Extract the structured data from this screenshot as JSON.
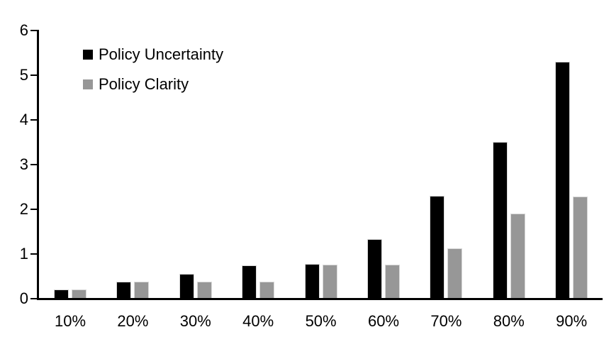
{
  "chart_data": {
    "type": "bar",
    "title": "",
    "xlabel": "",
    "ylabel": "",
    "categories": [
      "10%",
      "20%",
      "30%",
      "40%",
      "50%",
      "60%",
      "70%",
      "80%",
      "90%"
    ],
    "series": [
      {
        "name": "Policy Uncertainty",
        "color": "#000000",
        "values": [
          0.2,
          0.38,
          0.55,
          0.75,
          0.77,
          1.33,
          2.3,
          3.5,
          5.3
        ]
      },
      {
        "name": "Policy Clarity",
        "color": "#979797",
        "values": [
          0.2,
          0.38,
          0.38,
          0.38,
          0.76,
          0.76,
          1.12,
          1.9,
          2.28
        ]
      }
    ],
    "ylim": [
      0,
      6
    ],
    "yticks": [
      0,
      1,
      2,
      3,
      4,
      5,
      6
    ],
    "grid": false,
    "legend_position": "top-left-inside",
    "axis_color": "#000000",
    "background_color": "#ffffff",
    "bar_border_color": "#d9d9d9"
  },
  "legend": {
    "items": [
      {
        "label": "Policy Uncertainty",
        "color": "#000000"
      },
      {
        "label": "Policy Clarity",
        "color": "#979797"
      }
    ]
  }
}
